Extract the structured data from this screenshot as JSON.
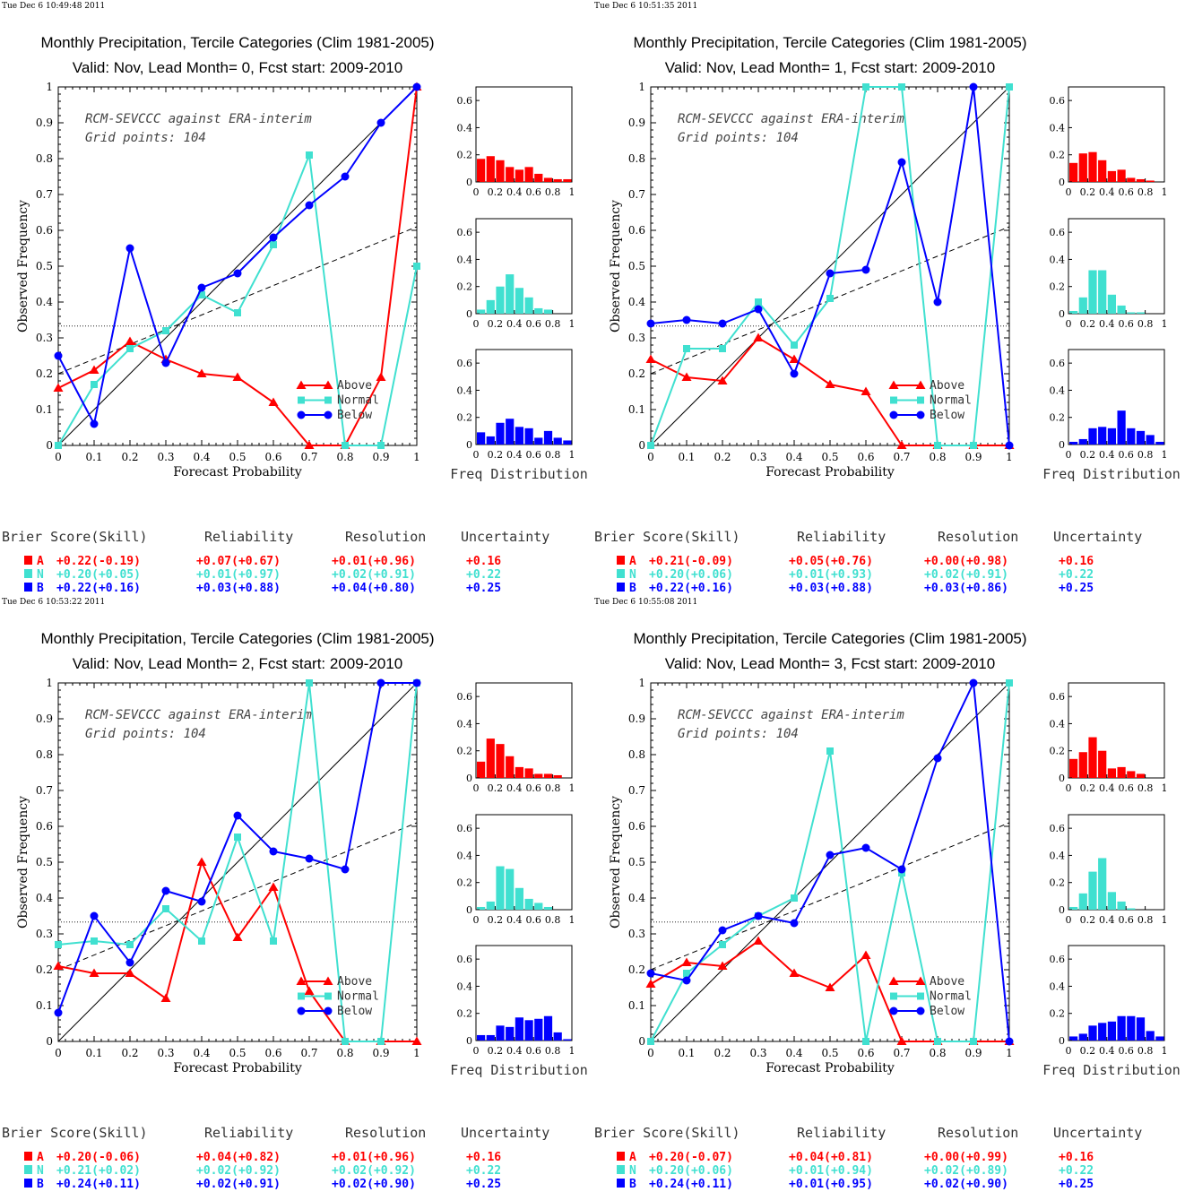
{
  "colors": {
    "above": "#ff0000",
    "normal": "#40e0d0",
    "below": "#0000ff"
  },
  "chart_data": [
    {
      "type": "line",
      "timestamp": "Tue Dec  6 10:49:48 2011",
      "title": "Monthly Precipitation, Tercile Categories (Clim 1981-2005)",
      "subtitle": "Valid: Nov, Lead Month= 0, Fcst start: 2009-2010",
      "annotation": [
        "RCM-SEVCCC against ERA-interim",
        "Grid points:  104"
      ],
      "xlabel": "Forecast Probability",
      "ylabel": "Observed Frequency",
      "hist_xlabel": "Freq Distribution",
      "xlim": [
        0,
        1
      ],
      "ylim": [
        0,
        1
      ],
      "x": [
        0,
        0.1,
        0.2,
        0.3,
        0.4,
        0.5,
        0.6,
        0.7,
        0.8,
        0.9,
        1
      ],
      "climatology": 0.333,
      "resolution_line": {
        "x": [
          0,
          1
        ],
        "y": [
          0.2,
          0.61
        ]
      },
      "series": [
        {
          "name": "Above",
          "key": "above",
          "marker": "triangle",
          "values": [
            0.16,
            0.21,
            0.29,
            0.24,
            0.2,
            0.19,
            0.12,
            0,
            0,
            0.19,
            1
          ]
        },
        {
          "name": "Normal",
          "key": "normal",
          "marker": "square",
          "values": [
            0,
            0.17,
            0.27,
            0.32,
            0.42,
            0.37,
            0.56,
            0.81,
            0,
            0,
            0.5
          ]
        },
        {
          "name": "Below",
          "key": "below",
          "marker": "circle",
          "values": [
            0.25,
            0.06,
            0.55,
            0.23,
            0.44,
            0.48,
            0.58,
            0.67,
            0.75,
            0.9,
            1
          ]
        }
      ],
      "histograms": [
        {
          "key": "above",
          "values": [
            0.17,
            0.19,
            0.16,
            0.11,
            0.09,
            0.11,
            0.06,
            0.03,
            0.02,
            0.02
          ]
        },
        {
          "key": "normal",
          "values": [
            0.03,
            0.1,
            0.2,
            0.29,
            0.19,
            0.12,
            0.04,
            0.03,
            0,
            0
          ]
        },
        {
          "key": "below",
          "values": [
            0.09,
            0.06,
            0.16,
            0.19,
            0.13,
            0.12,
            0.05,
            0.1,
            0.05,
            0.03
          ]
        }
      ],
      "hist_yticks": [
        "0",
        "0.2",
        "0.4",
        "0.6"
      ],
      "hist_xticks": [
        "0",
        "0.2",
        "0.4",
        "0.6",
        "0.8",
        "1"
      ],
      "scores": {
        "headers": [
          "Brier Score(Skill)",
          "Reliability",
          "Resolution",
          "Uncertainty"
        ],
        "rows": [
          {
            "key": "above",
            "label": "A",
            "brier": "+0.22(-0.19)",
            "rel": "+0.07(+0.67)",
            "res": "+0.01(+0.96)",
            "unc": "+0.16"
          },
          {
            "key": "normal",
            "label": "N",
            "brier": "+0.20(+0.05)",
            "rel": "+0.01(+0.97)",
            "res": "+0.02(+0.91)",
            "unc": "+0.22"
          },
          {
            "key": "below",
            "label": "B",
            "brier": "+0.22(+0.16)",
            "rel": "+0.03(+0.88)",
            "res": "+0.04(+0.80)",
            "unc": "+0.25"
          }
        ]
      }
    },
    {
      "type": "line",
      "timestamp": "Tue Dec  6 10:51:35 2011",
      "title": "Monthly Precipitation, Tercile Categories (Clim 1981-2005)",
      "subtitle": "Valid: Nov, Lead Month= 1, Fcst start: 2009-2010",
      "annotation": [
        "RCM-SEVCCC against ERA-interim",
        "Grid points:  104"
      ],
      "xlabel": "Forecast Probability",
      "ylabel": "Observed Frequency",
      "hist_xlabel": "Freq Distribution",
      "xlim": [
        0,
        1
      ],
      "ylim": [
        0,
        1
      ],
      "x": [
        0,
        0.1,
        0.2,
        0.3,
        0.4,
        0.5,
        0.6,
        0.7,
        0.8,
        0.9,
        1
      ],
      "climatology": 0.333,
      "resolution_line": {
        "x": [
          0,
          1
        ],
        "y": [
          0.2,
          0.61
        ]
      },
      "series": [
        {
          "name": "Above",
          "key": "above",
          "marker": "triangle",
          "values": [
            0.24,
            0.19,
            0.18,
            0.3,
            0.24,
            0.17,
            0.15,
            0,
            0,
            0,
            0
          ]
        },
        {
          "name": "Normal",
          "key": "normal",
          "marker": "square",
          "values": [
            0,
            0.27,
            0.27,
            0.4,
            0.28,
            0.41,
            1,
            1,
            0,
            0,
            1
          ]
        },
        {
          "name": "Below",
          "key": "below",
          "marker": "circle",
          "values": [
            0.34,
            0.35,
            0.34,
            0.38,
            0.2,
            0.48,
            0.49,
            0.79,
            0.4,
            1,
            0
          ]
        }
      ],
      "histograms": [
        {
          "key": "above",
          "values": [
            0.14,
            0.21,
            0.22,
            0.16,
            0.08,
            0.09,
            0.03,
            0.02,
            0.01,
            0
          ]
        },
        {
          "key": "normal",
          "values": [
            0.02,
            0.12,
            0.32,
            0.32,
            0.14,
            0.06,
            0.01,
            0.01,
            0,
            0
          ]
        },
        {
          "key": "below",
          "values": [
            0.02,
            0.04,
            0.12,
            0.13,
            0.12,
            0.25,
            0.12,
            0.1,
            0.07,
            0.02
          ]
        }
      ],
      "hist_yticks": [
        "0",
        "0.2",
        "0.4",
        "0.6"
      ],
      "hist_xticks": [
        "0",
        "0.2",
        "0.4",
        "0.6",
        "0.8",
        "1"
      ],
      "scores": {
        "headers": [
          "Brier Score(Skill)",
          "Reliability",
          "Resolution",
          "Uncertainty"
        ],
        "rows": [
          {
            "key": "above",
            "label": "A",
            "brier": "+0.21(-0.09)",
            "rel": "+0.05(+0.76)",
            "res": "+0.00(+0.98)",
            "unc": "+0.16"
          },
          {
            "key": "normal",
            "label": "N",
            "brier": "+0.20(+0.06)",
            "rel": "+0.01(+0.93)",
            "res": "+0.02(+0.91)",
            "unc": "+0.22"
          },
          {
            "key": "below",
            "label": "B",
            "brier": "+0.22(+0.16)",
            "rel": "+0.03(+0.88)",
            "res": "+0.03(+0.86)",
            "unc": "+0.25"
          }
        ]
      }
    },
    {
      "type": "line",
      "timestamp": "Tue Dec  6 10:53:22 2011",
      "title": "Monthly Precipitation, Tercile Categories (Clim 1981-2005)",
      "subtitle": "Valid: Nov, Lead Month= 2, Fcst start: 2009-2010",
      "annotation": [
        "RCM-SEVCCC against ERA-interim",
        "Grid points:  104"
      ],
      "xlabel": "Forecast Probability",
      "ylabel": "Observed Frequency",
      "hist_xlabel": "Freq Distribution",
      "xlim": [
        0,
        1
      ],
      "ylim": [
        0,
        1
      ],
      "x": [
        0,
        0.1,
        0.2,
        0.3,
        0.4,
        0.5,
        0.6,
        0.7,
        0.8,
        0.9,
        1
      ],
      "climatology": 0.333,
      "resolution_line": {
        "x": [
          0,
          1
        ],
        "y": [
          0.2,
          0.61
        ]
      },
      "series": [
        {
          "name": "Above",
          "key": "above",
          "marker": "triangle",
          "values": [
            0.21,
            0.19,
            0.19,
            0.12,
            0.5,
            0.29,
            0.43,
            0.14,
            0,
            0,
            0
          ]
        },
        {
          "name": "Normal",
          "key": "normal",
          "marker": "square",
          "values": [
            0.27,
            0.28,
            0.27,
            0.37,
            0.28,
            0.57,
            0.28,
            1,
            0,
            0,
            1
          ]
        },
        {
          "name": "Below",
          "key": "below",
          "marker": "circle",
          "values": [
            0.08,
            0.35,
            0.22,
            0.42,
            0.39,
            0.63,
            0.53,
            0.51,
            0.48,
            1,
            1
          ]
        }
      ],
      "histograms": [
        {
          "key": "above",
          "values": [
            0.12,
            0.29,
            0.25,
            0.16,
            0.08,
            0.07,
            0.03,
            0.03,
            0.02,
            0
          ]
        },
        {
          "key": "normal",
          "values": [
            0.02,
            0.06,
            0.32,
            0.3,
            0.16,
            0.08,
            0.05,
            0.02,
            0,
            0
          ]
        },
        {
          "key": "below",
          "values": [
            0.04,
            0.04,
            0.11,
            0.1,
            0.17,
            0.15,
            0.16,
            0.18,
            0.06,
            0.01
          ]
        }
      ],
      "hist_yticks": [
        "0",
        "0.2",
        "0.4",
        "0.6"
      ],
      "hist_xticks": [
        "0",
        "0.2",
        "0.4",
        "0.6",
        "0.8",
        "1"
      ],
      "scores": {
        "headers": [
          "Brier Score(Skill)",
          "Reliability",
          "Resolution",
          "Uncertainty"
        ],
        "rows": [
          {
            "key": "above",
            "label": "A",
            "brier": "+0.20(-0.06)",
            "rel": "+0.04(+0.82)",
            "res": "+0.01(+0.96)",
            "unc": "+0.16"
          },
          {
            "key": "normal",
            "label": "N",
            "brier": "+0.21(+0.02)",
            "rel": "+0.02(+0.92)",
            "res": "+0.02(+0.92)",
            "unc": "+0.22"
          },
          {
            "key": "below",
            "label": "B",
            "brier": "+0.24(+0.11)",
            "rel": "+0.02(+0.91)",
            "res": "+0.02(+0.90)",
            "unc": "+0.25"
          }
        ]
      }
    },
    {
      "type": "line",
      "timestamp": "Tue Dec  6 10:55:08 2011",
      "title": "Monthly Precipitation, Tercile Categories (Clim 1981-2005)",
      "subtitle": "Valid: Nov, Lead Month= 3, Fcst start: 2009-2010",
      "annotation": [
        "RCM-SEVCCC against ERA-interim",
        "Grid points:  104"
      ],
      "xlabel": "Forecast Probability",
      "ylabel": "Observed Frequency",
      "hist_xlabel": "Freq Distribution",
      "xlim": [
        0,
        1
      ],
      "ylim": [
        0,
        1
      ],
      "x": [
        0,
        0.1,
        0.2,
        0.3,
        0.4,
        0.5,
        0.6,
        0.7,
        0.8,
        0.9,
        1
      ],
      "climatology": 0.333,
      "resolution_line": {
        "x": [
          0,
          1
        ],
        "y": [
          0.2,
          0.61
        ]
      },
      "series": [
        {
          "name": "Above",
          "key": "above",
          "marker": "triangle",
          "values": [
            0.16,
            0.22,
            0.21,
            0.28,
            0.19,
            0.15,
            0.24,
            0,
            0,
            0,
            0
          ]
        },
        {
          "name": "Normal",
          "key": "normal",
          "marker": "square",
          "values": [
            0,
            0.19,
            0.27,
            0.35,
            0.4,
            0.81,
            0,
            0.47,
            0,
            0,
            1
          ]
        },
        {
          "name": "Below",
          "key": "below",
          "marker": "circle",
          "values": [
            0.19,
            0.17,
            0.31,
            0.35,
            0.33,
            0.52,
            0.54,
            0.48,
            0.79,
            1,
            0
          ]
        }
      ],
      "histograms": [
        {
          "key": "above",
          "values": [
            0.14,
            0.19,
            0.3,
            0.2,
            0.07,
            0.08,
            0.05,
            0.03,
            0,
            0
          ]
        },
        {
          "key": "normal",
          "values": [
            0.02,
            0.12,
            0.28,
            0.38,
            0.13,
            0.06,
            0.01,
            0,
            0,
            0
          ]
        },
        {
          "key": "below",
          "values": [
            0.03,
            0.05,
            0.11,
            0.13,
            0.14,
            0.18,
            0.18,
            0.17,
            0.07,
            0.03
          ]
        }
      ],
      "hist_yticks": [
        "0",
        "0.2",
        "0.4",
        "0.6"
      ],
      "hist_xticks": [
        "0",
        "0.2",
        "0.4",
        "0.6",
        "0.8",
        "1"
      ],
      "scores": {
        "headers": [
          "Brier Score(Skill)",
          "Reliability",
          "Resolution",
          "Uncertainty"
        ],
        "rows": [
          {
            "key": "above",
            "label": "A",
            "brier": "+0.20(-0.07)",
            "rel": "+0.04(+0.81)",
            "res": "+0.00(+0.99)",
            "unc": "+0.16"
          },
          {
            "key": "normal",
            "label": "N",
            "brier": "+0.20(+0.06)",
            "rel": "+0.01(+0.94)",
            "res": "+0.02(+0.89)",
            "unc": "+0.22"
          },
          {
            "key": "below",
            "label": "B",
            "brier": "+0.24(+0.11)",
            "rel": "+0.01(+0.95)",
            "res": "+0.02(+0.90)",
            "unc": "+0.25"
          }
        ]
      }
    }
  ]
}
